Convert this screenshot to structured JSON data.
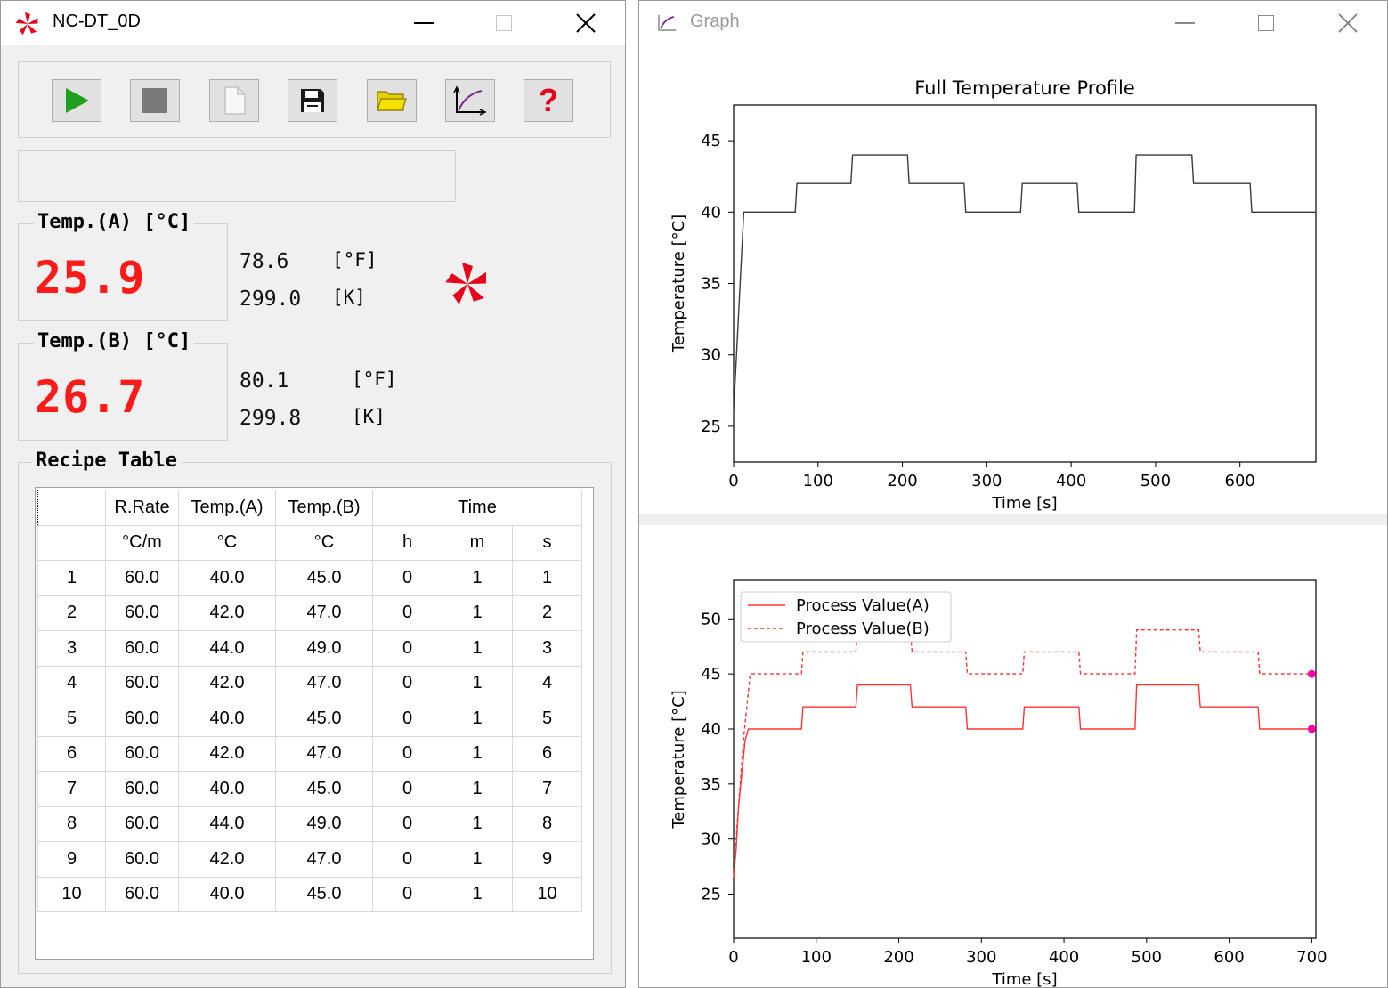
{
  "main_window": {
    "title": "NC-DT_0D",
    "icon": "pinwheel-icon",
    "toolbar": [
      {
        "name": "run-button",
        "icon": "play-icon",
        "color": "#1f9e1f"
      },
      {
        "name": "stop-button",
        "icon": "stop-icon",
        "color": "#7a7a7a"
      },
      {
        "name": "new-file-button",
        "icon": "new-file-icon",
        "color": "#cfcfcf"
      },
      {
        "name": "save-button",
        "icon": "floppy-disk-icon",
        "color": "#1a1a1a"
      },
      {
        "name": "open-folder-button",
        "icon": "folder-icon",
        "color": "#e6cf00"
      },
      {
        "name": "graph-button",
        "icon": "graph-icon",
        "color": "#7a2a8a"
      },
      {
        "name": "help-button",
        "icon": "question-mark-icon",
        "label": "?",
        "color": "#e8001a"
      }
    ],
    "temp_a": {
      "label": "Temp.(A) [°C]",
      "value": "25.9",
      "f_value": "78.6",
      "f_unit": "[°F]",
      "k_value": "299.0",
      "k_unit": "[K]"
    },
    "temp_b": {
      "label": "Temp.(B) [°C]",
      "value": "26.7",
      "f_value": "80.1",
      "f_unit": "[°F]",
      "k_value": "299.8",
      "k_unit": "[K]"
    },
    "led_color": "#ff1a1a",
    "recipe": {
      "title": "Recipe Table",
      "header_row1": {
        "rate": "R.Rate",
        "temp_a": "Temp.(A)",
        "temp_b": "Temp.(B)",
        "time": "Time"
      },
      "header_row2": {
        "rate": "°C/m",
        "temp_a": "°C",
        "temp_b": "°C",
        "h": "h",
        "m": "m",
        "s": "s"
      },
      "rows": [
        [
          "1",
          "60.0",
          "40.0",
          "45.0",
          "0",
          "1",
          "1"
        ],
        [
          "2",
          "60.0",
          "42.0",
          "47.0",
          "0",
          "1",
          "2"
        ],
        [
          "3",
          "60.0",
          "44.0",
          "49.0",
          "0",
          "1",
          "3"
        ],
        [
          "4",
          "60.0",
          "42.0",
          "47.0",
          "0",
          "1",
          "4"
        ],
        [
          "5",
          "60.0",
          "40.0",
          "45.0",
          "0",
          "1",
          "5"
        ],
        [
          "6",
          "60.0",
          "42.0",
          "47.0",
          "0",
          "1",
          "6"
        ],
        [
          "7",
          "60.0",
          "40.0",
          "45.0",
          "0",
          "1",
          "7"
        ],
        [
          "8",
          "60.0",
          "44.0",
          "49.0",
          "0",
          "1",
          "8"
        ],
        [
          "9",
          "60.0",
          "42.0",
          "47.0",
          "0",
          "1",
          "9"
        ],
        [
          "10",
          "60.0",
          "40.0",
          "45.0",
          "0",
          "1",
          "10"
        ]
      ]
    }
  },
  "graph_window": {
    "title": "Graph",
    "icon": "graph-icon"
  },
  "chart_data": [
    {
      "type": "line",
      "title": "Full Temperature Profile",
      "xlabel": "Time [s]",
      "ylabel": "Temperature [°C]",
      "xlim": [
        0,
        690
      ],
      "ylim": [
        22.5,
        47.5
      ],
      "xticks": [
        "0",
        "100",
        "200",
        "300",
        "400",
        "500",
        "600"
      ],
      "yticks": [
        "25",
        "30",
        "35",
        "40",
        "45"
      ],
      "series": [
        {
          "color": "#3a3a3a",
          "x": [
            0,
            12,
            73,
            75,
            139,
            141,
            206,
            208,
            273,
            275,
            340,
            342,
            407,
            409,
            475,
            477,
            543,
            545,
            612,
            614,
            690
          ],
          "y": [
            26,
            40,
            40,
            42,
            42,
            44,
            44,
            42,
            42,
            40,
            40,
            42,
            42,
            40,
            40,
            44,
            44,
            42,
            42,
            40,
            40
          ]
        }
      ]
    },
    {
      "type": "line",
      "xlabel": "Time [s]",
      "ylabel": "Temperature [°C]",
      "xlim": [
        0,
        705
      ],
      "ylim": [
        21,
        53.5
      ],
      "xticks": [
        "0",
        "100",
        "200",
        "300",
        "400",
        "500",
        "600",
        "700"
      ],
      "yticks": [
        "25",
        "30",
        "35",
        "40",
        "45",
        "50"
      ],
      "legend": "top-left",
      "series": [
        {
          "name": "Process Value(A)",
          "color": "#ff3333",
          "style": "solid",
          "x": [
            0,
            3,
            6,
            10,
            14,
            18,
            20,
            82,
            84,
            148,
            150,
            214,
            216,
            281,
            283,
            350,
            352,
            418,
            420,
            486,
            488,
            563,
            565,
            635,
            637,
            700
          ],
          "y": [
            26.5,
            29,
            33,
            36,
            39,
            40,
            40,
            40,
            42,
            42,
            44,
            44,
            42,
            42,
            40,
            40,
            42,
            42,
            40,
            40,
            44,
            44,
            42,
            42,
            40,
            40
          ]
        },
        {
          "name": "Process Value(B)",
          "color": "#ff3333",
          "style": "dashed",
          "x": [
            0,
            4,
            8,
            12,
            16,
            20,
            23,
            82,
            84,
            148,
            150,
            214,
            216,
            281,
            283,
            350,
            352,
            418,
            420,
            486,
            488,
            563,
            565,
            635,
            637,
            700
          ],
          "y": [
            26.5,
            31,
            35,
            39,
            42,
            45,
            45,
            45,
            47,
            47,
            49,
            49,
            47,
            47,
            45,
            45,
            47,
            47,
            45,
            45,
            49,
            49,
            47,
            47,
            45,
            45
          ]
        }
      ],
      "end_markers": [
        {
          "x": 700,
          "y": 40,
          "color": "#ff00aa"
        },
        {
          "x": 700,
          "y": 45,
          "color": "#ff00aa"
        }
      ]
    }
  ]
}
